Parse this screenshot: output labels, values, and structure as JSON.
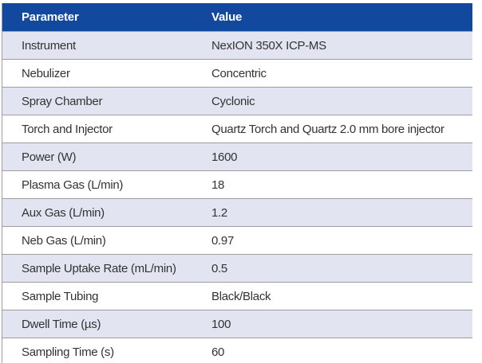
{
  "table": {
    "columns": [
      "Parameter",
      "Value"
    ],
    "rows": [
      {
        "parameter": "Instrument",
        "value": "NexION 350X ICP-MS"
      },
      {
        "parameter": "Nebulizer",
        "value": "Concentric"
      },
      {
        "parameter": "Spray Chamber",
        "value": "Cyclonic"
      },
      {
        "parameter": "Torch and Injector",
        "value": "Quartz Torch and Quartz 2.0 mm bore injector"
      },
      {
        "parameter": "Power (W)",
        "value": "1600"
      },
      {
        "parameter": "Plasma Gas (L/min)",
        "value": "18"
      },
      {
        "parameter": "Aux Gas (L/min)",
        "value": "1.2"
      },
      {
        "parameter": "Neb Gas (L/min)",
        "value": "0.97"
      },
      {
        "parameter": "Sample Uptake Rate (mL/min)",
        "value": "0.5"
      },
      {
        "parameter": "Sample Tubing",
        "value": "Black/Black"
      },
      {
        "parameter": "Dwell Time (µs)",
        "value": "100"
      },
      {
        "parameter": "Sampling Time (s)",
        "value": "60"
      }
    ]
  },
  "colors": {
    "header_bg": "#12499E",
    "row_alt_bg": "#E2E4F1",
    "row_bg": "#FFFFFF",
    "border": "#9D9D9D",
    "header_text": "#FFFFFF",
    "body_text": "#333333"
  }
}
